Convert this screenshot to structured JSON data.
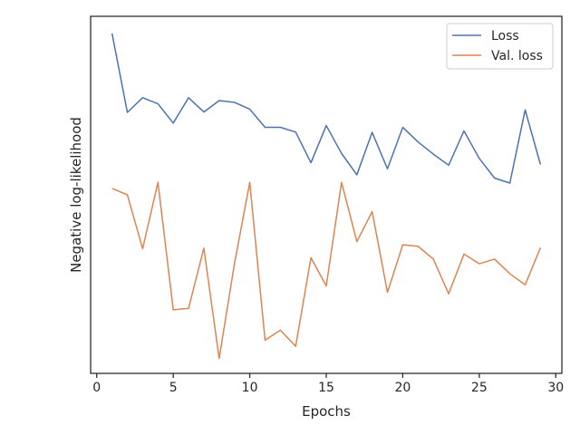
{
  "chart_data": {
    "type": "line",
    "title": "",
    "xlabel": "Epochs",
    "ylabel": "Negative log-likelihood",
    "xlim": [
      -0.4,
      30.4
    ],
    "ylim": [
      0.0,
      1.0
    ],
    "y_ticks_shown": false,
    "xticks": [
      0,
      5,
      10,
      15,
      20,
      25,
      30
    ],
    "grid": false,
    "legend_position": "top-right",
    "x": [
      1,
      2,
      3,
      4,
      5,
      6,
      7,
      8,
      9,
      10,
      11,
      12,
      13,
      14,
      15,
      16,
      17,
      18,
      19,
      20,
      21,
      22,
      23,
      24,
      25,
      26,
      27,
      28,
      29
    ],
    "series": [
      {
        "name": "Loss",
        "color": "#4c72b0",
        "values": [
          0.952,
          0.731,
          0.772,
          0.755,
          0.701,
          0.772,
          0.732,
          0.764,
          0.759,
          0.74,
          0.689,
          0.689,
          0.676,
          0.59,
          0.694,
          0.616,
          0.556,
          0.675,
          0.573,
          0.689,
          0.648,
          0.614,
          0.583,
          0.679,
          0.602,
          0.547,
          0.533,
          0.738,
          0.585
        ]
      },
      {
        "name": "Val. loss",
        "color": "#dd8452",
        "values": [
          0.518,
          0.5,
          0.349,
          0.535,
          0.178,
          0.182,
          0.351,
          0.042,
          0.307,
          0.535,
          0.093,
          0.121,
          0.076,
          0.324,
          0.245,
          0.535,
          0.369,
          0.453,
          0.227,
          0.36,
          0.356,
          0.32,
          0.223,
          0.334,
          0.307,
          0.32,
          0.279,
          0.248,
          0.352
        ]
      }
    ]
  }
}
